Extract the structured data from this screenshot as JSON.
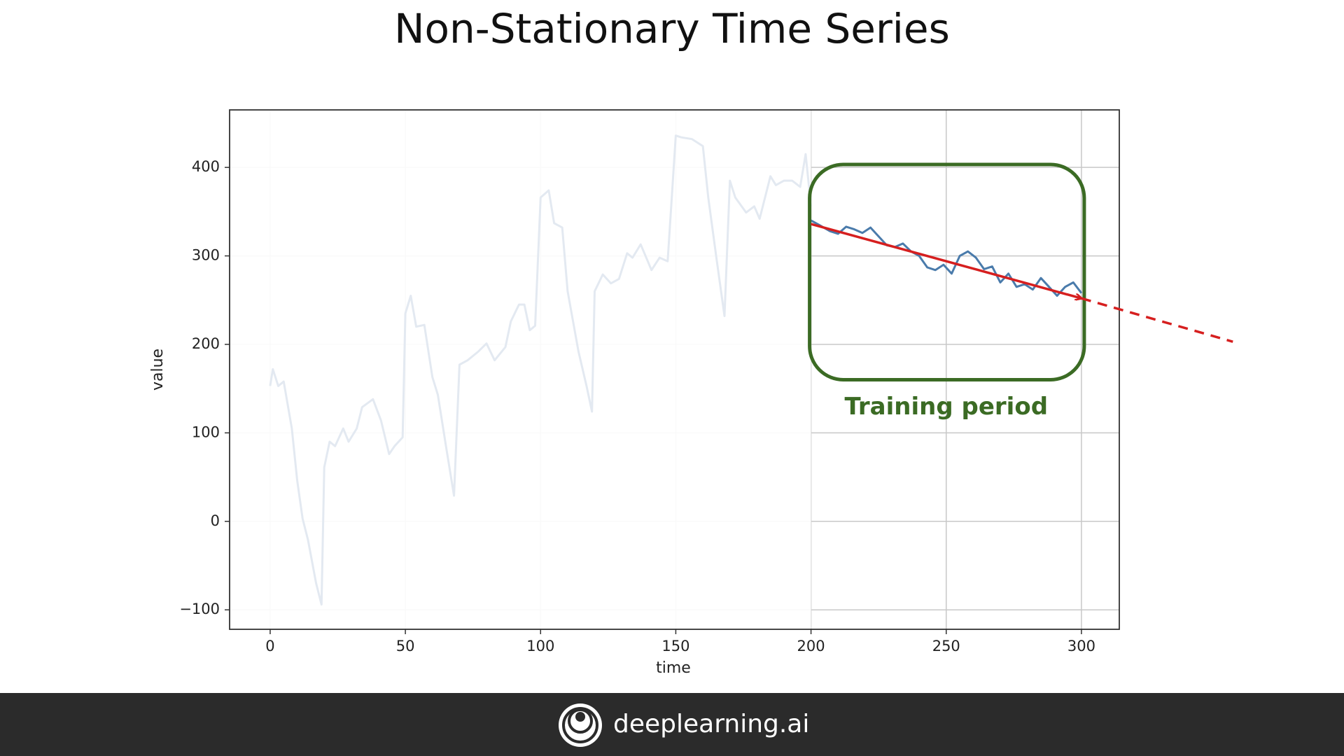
{
  "chart_data": {
    "type": "line",
    "title": "Non-Stationary Time Series",
    "x_label": "time",
    "y_label": "value",
    "xlim": [
      -15,
      314
    ],
    "ylim": [
      -122,
      465
    ],
    "xticks": [
      0,
      50,
      100,
      150,
      200,
      250,
      300
    ],
    "yticks": [
      {
        "value": -100,
        "label": "−100"
      },
      0,
      100,
      200,
      300,
      400
    ],
    "grid": true,
    "series": [
      {
        "color": "#e3e9f1",
        "x": [
          0,
          1,
          3,
          5,
          8,
          10,
          12,
          14,
          17,
          19,
          20,
          22,
          24,
          27,
          29,
          32,
          34,
          38,
          41,
          44,
          46,
          49,
          50,
          52,
          54,
          57,
          60,
          62,
          65,
          68,
          70,
          73,
          77,
          80,
          83,
          87,
          89,
          92,
          94,
          96,
          98,
          100,
          103,
          105,
          108,
          110,
          114,
          117,
          119,
          120,
          123,
          126,
          129,
          132,
          134,
          137,
          141,
          144,
          147,
          150,
          152,
          156,
          160,
          162,
          165,
          168,
          170,
          172,
          176,
          179,
          181,
          185,
          187,
          190,
          193,
          196,
          198,
          200
        ],
        "values": [
          153,
          172,
          153,
          158,
          105,
          46,
          3,
          -21,
          -70,
          -94,
          61,
          90,
          85,
          105,
          90,
          105,
          129,
          138,
          114,
          76,
          85,
          95,
          235,
          255,
          220,
          222,
          163,
          143,
          85,
          29,
          177,
          182,
          192,
          201,
          182,
          197,
          226,
          245,
          245,
          216,
          221,
          366,
          374,
          337,
          332,
          260,
          192,
          153,
          124,
          260,
          279,
          269,
          274,
          303,
          298,
          313,
          284,
          298,
          294,
          436,
          434,
          432,
          424,
          366,
          298,
          232,
          385,
          366,
          349,
          356,
          342,
          390,
          380,
          385,
          385,
          378,
          415,
          356
        ]
      },
      {
        "color": "#4a7bab",
        "x": [
          200,
          203,
          207,
          210,
          213,
          216,
          219,
          222,
          225,
          228,
          231,
          234,
          237,
          240,
          243,
          246,
          249,
          252,
          255,
          258,
          261,
          264,
          267,
          270,
          273,
          276,
          279,
          282,
          285,
          288,
          291,
          294,
          297,
          300
        ],
        "values": [
          340,
          335,
          328,
          325,
          333,
          330,
          326,
          332,
          322,
          312,
          310,
          314,
          305,
          300,
          287,
          284,
          290,
          280,
          300,
          305,
          298,
          285,
          288,
          270,
          280,
          265,
          268,
          262,
          275,
          265,
          255,
          265,
          270,
          258
        ]
      }
    ],
    "trend": {
      "color": "#d61f1f",
      "x": [
        200,
        300
      ],
      "values": [
        336,
        252
      ]
    },
    "forecast": {
      "color": "#d61f1f",
      "x": [
        300,
        356
      ],
      "values": [
        252,
        203
      ]
    },
    "annotation": {
      "text": "Training period",
      "color": "#3b6b24"
    }
  },
  "footer": {
    "brand": "deeplearning.ai"
  }
}
